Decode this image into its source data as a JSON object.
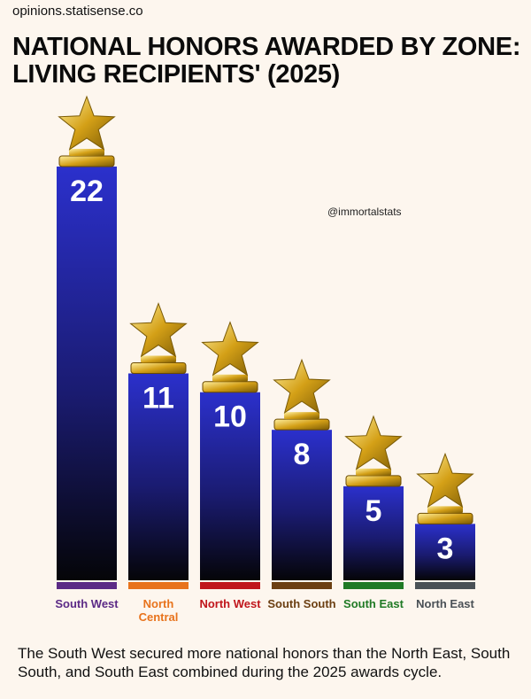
{
  "source": "opinions.statisense.co",
  "watermark": "@immortalstats",
  "caption": "The South West secured more national honors than the North East, South South, and South East combined during the 2025 awards cycle.",
  "chart_data": {
    "type": "bar",
    "title": "NATIONAL HONORS AWARDED BY ZONE: LIVING RECIPIENTS' (2025)",
    "categories": [
      "South West",
      "North Central",
      "North West",
      "South South",
      "South East",
      "North East"
    ],
    "values": [
      22,
      11,
      10,
      8,
      5,
      3
    ],
    "category_colors": [
      "#5b2a86",
      "#e8731c",
      "#c0161c",
      "#6b3f12",
      "#1f7a25",
      "#4a5156"
    ],
    "ylim": [
      0,
      22
    ]
  }
}
